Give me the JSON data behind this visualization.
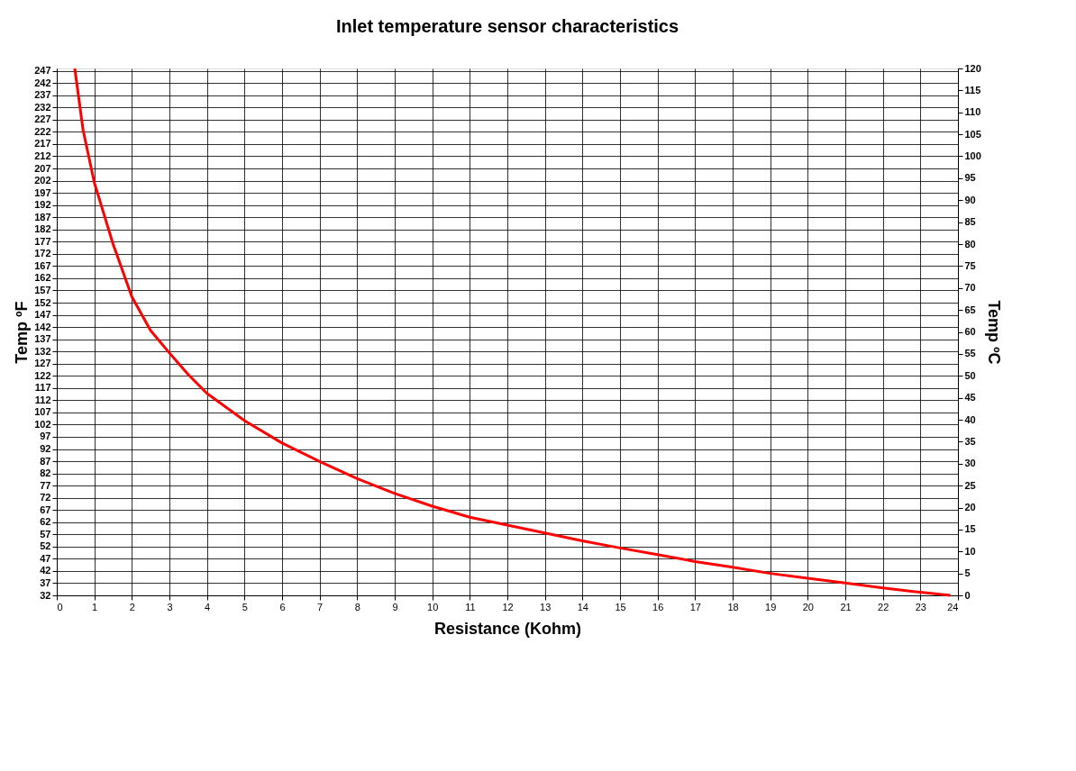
{
  "chart_data": {
    "type": "line",
    "title": "Inlet temperature sensor characteristics",
    "xlabel": "Resistance (Kohm)",
    "ylabel": "Temp ºF",
    "y2label": "Temp ºC",
    "xlim": [
      0,
      24
    ],
    "xticks": [
      0,
      1,
      2,
      3,
      4,
      5,
      6,
      7,
      8,
      9,
      10,
      11,
      12,
      13,
      14,
      15,
      16,
      17,
      18,
      19,
      20,
      21,
      22,
      23,
      24
    ],
    "ylim": [
      32,
      248
    ],
    "yticks": [
      32,
      37,
      42,
      47,
      52,
      57,
      62,
      67,
      72,
      77,
      82,
      87,
      92,
      97,
      102,
      107,
      112,
      117,
      122,
      127,
      132,
      137,
      142,
      147,
      152,
      157,
      162,
      167,
      172,
      177,
      182,
      187,
      192,
      197,
      202,
      207,
      212,
      217,
      222,
      227,
      232,
      237,
      242,
      247
    ],
    "y2lim": [
      0,
      120
    ],
    "y2ticks": [
      0,
      5,
      10,
      15,
      20,
      25,
      30,
      35,
      40,
      45,
      50,
      55,
      60,
      65,
      70,
      75,
      80,
      85,
      90,
      95,
      100,
      105,
      110,
      115,
      120
    ],
    "grid": true,
    "marker": "none",
    "line_style": "solid",
    "series": [
      {
        "color": "#ff0000",
        "axis": "y2",
        "x": [
          0.48,
          0.7,
          1,
          1.5,
          2,
          2.5,
          3,
          3.5,
          4,
          5,
          6,
          7,
          8,
          9,
          10,
          11,
          12,
          13,
          14,
          15,
          16,
          17,
          18,
          19,
          20,
          21,
          22,
          23,
          23.8
        ],
        "values": [
          120,
          106,
          94,
          80,
          68,
          60.3,
          55.2,
          50.3,
          46,
          39.8,
          34.7,
          30.5,
          26.6,
          23.2,
          20.3,
          17.8,
          16,
          14.2,
          12.4,
          10.8,
          9.3,
          7.7,
          6.4,
          5,
          3.9,
          2.8,
          1.7,
          0.7,
          0
        ]
      }
    ]
  }
}
